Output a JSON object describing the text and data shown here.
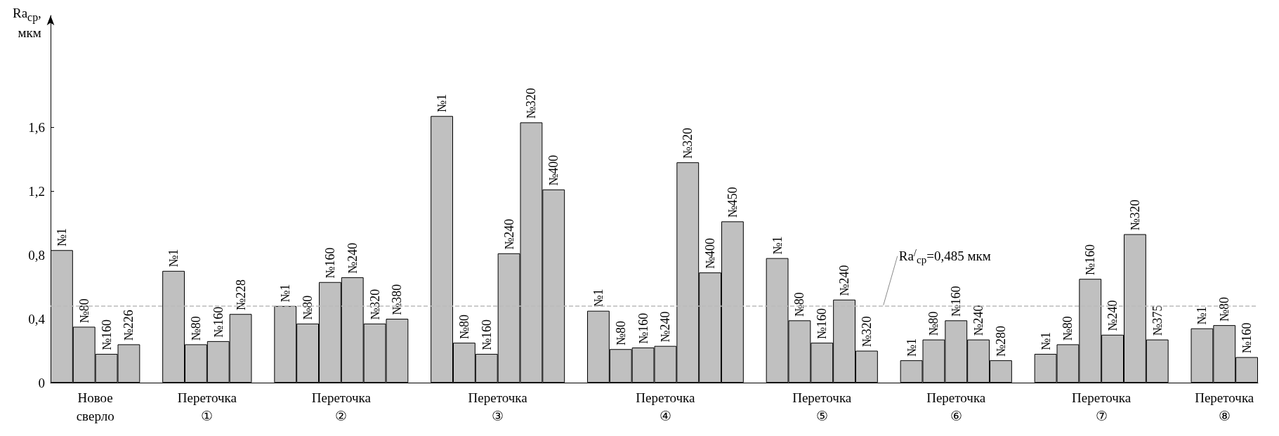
{
  "chart_data": {
    "type": "bar",
    "ylabel": "Ra$_{ср}$,\nмкм",
    "categories": [
      "№1",
      "№80",
      "№160",
      "№226",
      null,
      "№1",
      "№80",
      "№160",
      "№228",
      null,
      "№1",
      "№80",
      "№160",
      "№240",
      "№320",
      "№380",
      null,
      "№1",
      "№80",
      "№160",
      "№240",
      "№320",
      "№400",
      null,
      "№1",
      "№80",
      "№160",
      "№240",
      "№320",
      "№400",
      "№450",
      null,
      "№1",
      "№80",
      "№160",
      "№240",
      "№320",
      null,
      "№1",
      "№80",
      "№160",
      "№240",
      "№280",
      null,
      "№1",
      "№80",
      "№160",
      "№240",
      "№320",
      "№375",
      null,
      "№1",
      "№80",
      "№160"
    ],
    "values": [
      0.83,
      0.35,
      0.18,
      0.24,
      null,
      0.7,
      0.24,
      0.26,
      0.43,
      null,
      0.48,
      0.37,
      0.63,
      0.66,
      0.37,
      0.4,
      null,
      1.67,
      0.25,
      0.18,
      0.81,
      1.63,
      1.21,
      null,
      0.45,
      0.21,
      0.22,
      0.23,
      1.38,
      0.69,
      1.01,
      null,
      0.78,
      0.39,
      0.25,
      0.52,
      0.2,
      null,
      0.14,
      0.27,
      0.39,
      0.27,
      0.14,
      null,
      0.18,
      0.24,
      0.65,
      0.3,
      0.93,
      0.27,
      null,
      0.34,
      0.36,
      0.16
    ],
    "color": "#c0c0c0",
    "ylim": [
      0,
      2.3
    ],
    "yticks": [
      0,
      {
        "value": 0.4,
        "label": "0,4"
      },
      {
        "value": 0.8,
        "label": "0,8"
      },
      {
        "value": 1.2,
        "label": "1,2"
      },
      {
        "value": 1.6,
        "label": "1,6"
      }
    ],
    "grid": false,
    "annotations": [
      "Новое\nсверло",
      "Переточка\n①",
      "Переточка\n②",
      "Переточка\n③",
      "Переточка\n④",
      "Переточка\n⑤",
      "Переточка\n⑥",
      "Переточка\n⑦",
      "Переточка\n⑧"
    ],
    "ref_lines": [
      {
        "axis": "y",
        "value": 0.485,
        "label": "Ra$^{/}$$_{ср}$=0,485 мкм",
        "color": "#bbbbbb",
        "line_style": "dashed"
      }
    ]
  }
}
